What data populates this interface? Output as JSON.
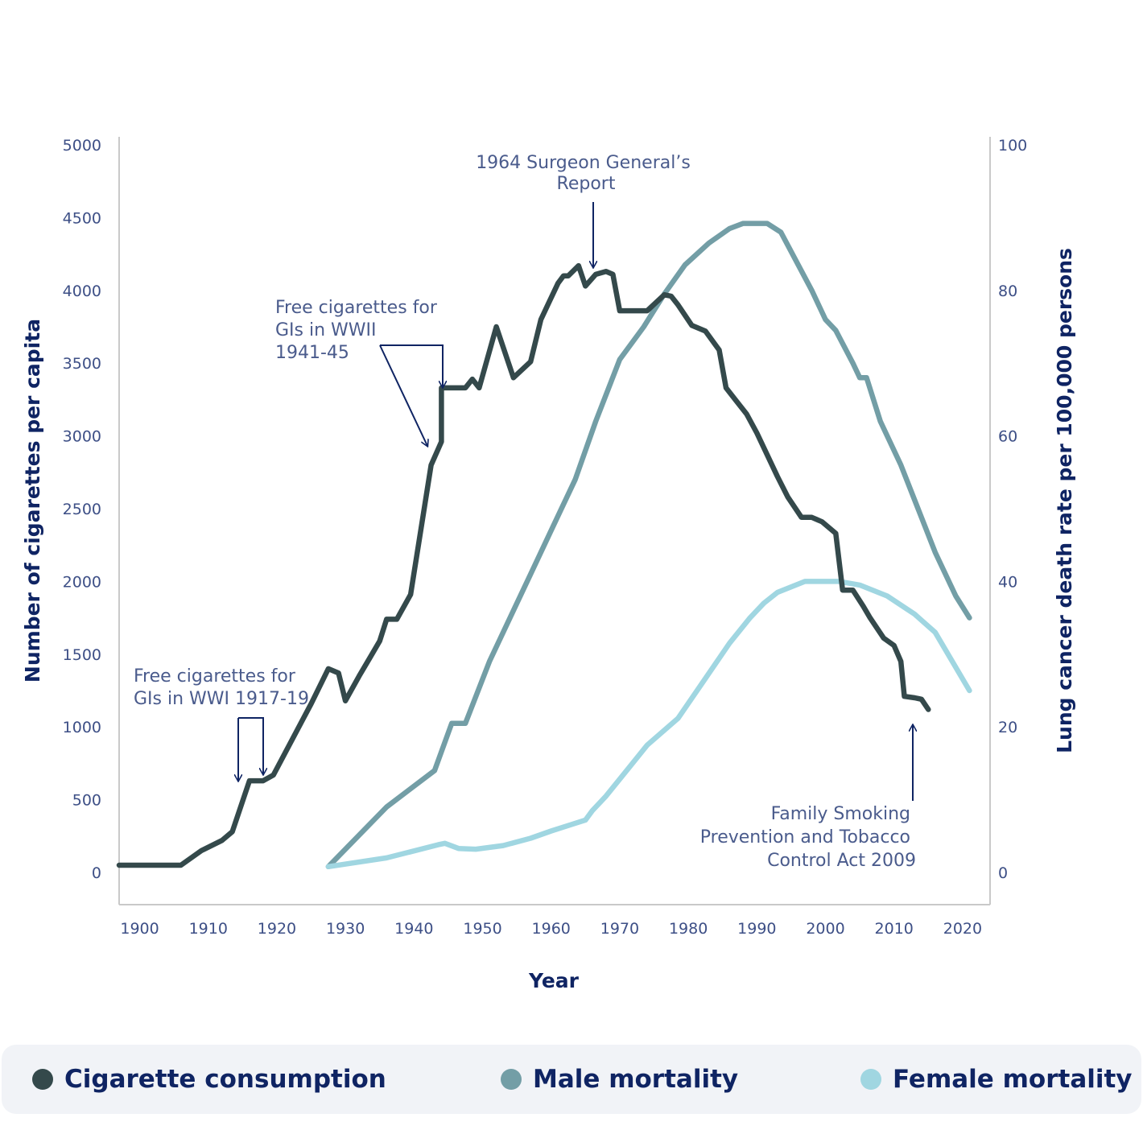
{
  "chart_data": {
    "type": "line",
    "xlabel": "Year",
    "ylabel_left": "Number of cigarettes per capita",
    "ylabel_right": "Lung cancer death rate per 100,000 persons",
    "xlim": [
      1897,
      2024
    ],
    "ylim_left": [
      0,
      5000
    ],
    "ylim_right": [
      0,
      100
    ],
    "x_ticks": [
      "1900",
      "1910",
      "1920",
      "1930",
      "1940",
      "1950",
      "1960",
      "1970",
      "1980",
      "1990",
      "2000",
      "2010",
      "2020"
    ],
    "y_ticks_left": [
      "0",
      "500",
      "1000",
      "1500",
      "2000",
      "2500",
      "3000",
      "3500",
      "4000",
      "4500",
      "5000"
    ],
    "y_ticks_right": [
      "0",
      "20",
      "40",
      "60",
      "80",
      "100"
    ],
    "grid": false,
    "legend_position": "bottom",
    "series": [
      {
        "name": "Cigarette consumption",
        "axis": "left",
        "color": "#34494b",
        "points": [
          [
            1897,
            50
          ],
          [
            1906,
            50
          ],
          [
            1909,
            150
          ],
          [
            1912,
            220
          ],
          [
            1913.5,
            280
          ],
          [
            1916,
            630
          ],
          [
            1918,
            630
          ],
          [
            1919.5,
            670
          ],
          [
            1925,
            1160
          ],
          [
            1927.5,
            1400
          ],
          [
            1929,
            1370
          ],
          [
            1930,
            1180
          ],
          [
            1932,
            1350
          ],
          [
            1933.5,
            1470
          ],
          [
            1935,
            1590
          ],
          [
            1936,
            1740
          ],
          [
            1937.5,
            1740
          ],
          [
            1939.5,
            1910
          ],
          [
            1942.5,
            2800
          ],
          [
            1944,
            2960
          ],
          [
            1944,
            3330
          ],
          [
            1946.5,
            3330
          ],
          [
            1947.5,
            3330
          ],
          [
            1948.5,
            3390
          ],
          [
            1949.5,
            3330
          ],
          [
            1952,
            3750
          ],
          [
            1954.5,
            3400
          ],
          [
            1957,
            3510
          ],
          [
            1958.5,
            3800
          ],
          [
            1959.5,
            3900
          ],
          [
            1961,
            4050
          ],
          [
            1961.8,
            4100
          ],
          [
            1962.5,
            4100
          ],
          [
            1964,
            4170
          ],
          [
            1965,
            4030
          ],
          [
            1966.5,
            4110
          ],
          [
            1968,
            4130
          ],
          [
            1969,
            4110
          ],
          [
            1970,
            3860
          ],
          [
            1974,
            3860
          ],
          [
            1976.5,
            3970
          ],
          [
            1977.5,
            3960
          ],
          [
            1978.5,
            3900
          ],
          [
            1980.5,
            3760
          ],
          [
            1982.5,
            3720
          ],
          [
            1984.5,
            3590
          ],
          [
            1985.5,
            3330
          ],
          [
            1987,
            3240
          ],
          [
            1988.5,
            3150
          ],
          [
            1990,
            3020
          ],
          [
            1993,
            2720
          ],
          [
            1994.5,
            2580
          ],
          [
            1996.5,
            2440
          ],
          [
            1998,
            2440
          ],
          [
            1999.5,
            2410
          ],
          [
            2001.5,
            2330
          ],
          [
            2002.5,
            1940
          ],
          [
            2004,
            1940
          ],
          [
            2005.5,
            1830
          ],
          [
            2006.5,
            1750
          ],
          [
            2008.5,
            1610
          ],
          [
            2010,
            1560
          ],
          [
            2011,
            1450
          ],
          [
            2011.5,
            1210
          ],
          [
            2013,
            1200
          ],
          [
            2014,
            1190
          ],
          [
            2015,
            1120
          ]
        ]
      },
      {
        "name": "Male mortality",
        "axis": "right",
        "color": "#739ea6",
        "points": [
          [
            1927.5,
            0.8
          ],
          [
            1936,
            9
          ],
          [
            1943,
            14
          ],
          [
            1945.5,
            20.5
          ],
          [
            1947.5,
            20.5
          ],
          [
            1951,
            29
          ],
          [
            1954,
            35
          ],
          [
            1957,
            41
          ],
          [
            1960,
            47
          ],
          [
            1963.5,
            54
          ],
          [
            1966.5,
            62
          ],
          [
            1970,
            70.5
          ],
          [
            1973.5,
            75
          ],
          [
            1976.5,
            79.5
          ],
          [
            1979.5,
            83.5
          ],
          [
            1983,
            86.5
          ],
          [
            1986,
            88.5
          ],
          [
            1988,
            89.2
          ],
          [
            1991.5,
            89.2
          ],
          [
            1993.5,
            88
          ],
          [
            1998,
            80
          ],
          [
            2000,
            76
          ],
          [
            2001.5,
            74.5
          ],
          [
            2004,
            70
          ],
          [
            2005,
            68
          ],
          [
            2006,
            68
          ],
          [
            2008,
            62
          ],
          [
            2011,
            56
          ],
          [
            2013.5,
            50
          ],
          [
            2016,
            44
          ],
          [
            2019,
            38
          ],
          [
            2021,
            35
          ]
        ]
      },
      {
        "name": "Female mortality",
        "axis": "right",
        "color": "#a0d6e1",
        "points": [
          [
            1927.5,
            0.8
          ],
          [
            1936,
            2
          ],
          [
            1943.5,
            3.8
          ],
          [
            1944.5,
            4
          ],
          [
            1946.5,
            3.3
          ],
          [
            1949,
            3.2
          ],
          [
            1953,
            3.7
          ],
          [
            1957,
            4.7
          ],
          [
            1960,
            5.7
          ],
          [
            1963,
            6.6
          ],
          [
            1965,
            7.2
          ],
          [
            1966,
            8.5
          ],
          [
            1968,
            10.5
          ],
          [
            1971,
            14
          ],
          [
            1974,
            17.5
          ],
          [
            1978.5,
            21.2
          ],
          [
            1982,
            26
          ],
          [
            1986,
            31.5
          ],
          [
            1989,
            35
          ],
          [
            1991,
            37
          ],
          [
            1993,
            38.5
          ],
          [
            1997,
            40
          ],
          [
            2002,
            40
          ],
          [
            2005,
            39.5
          ],
          [
            2009,
            38
          ],
          [
            2013,
            35.5
          ],
          [
            2016,
            33
          ],
          [
            2021,
            25
          ]
        ]
      }
    ],
    "annotations": [
      {
        "lines": [
          "Free  cigarettes for",
          "GIs in WWI 1917-19"
        ]
      },
      {
        "lines": [
          "Free cigarettes for",
          "GIs in WWII",
          "1941-45"
        ]
      },
      {
        "lines": [
          "1964 Surgeon General’s",
          "Report"
        ]
      },
      {
        "lines": [
          "Family Smoking",
          "Prevention and Tobacco",
          "Control Act 2009"
        ]
      }
    ]
  }
}
